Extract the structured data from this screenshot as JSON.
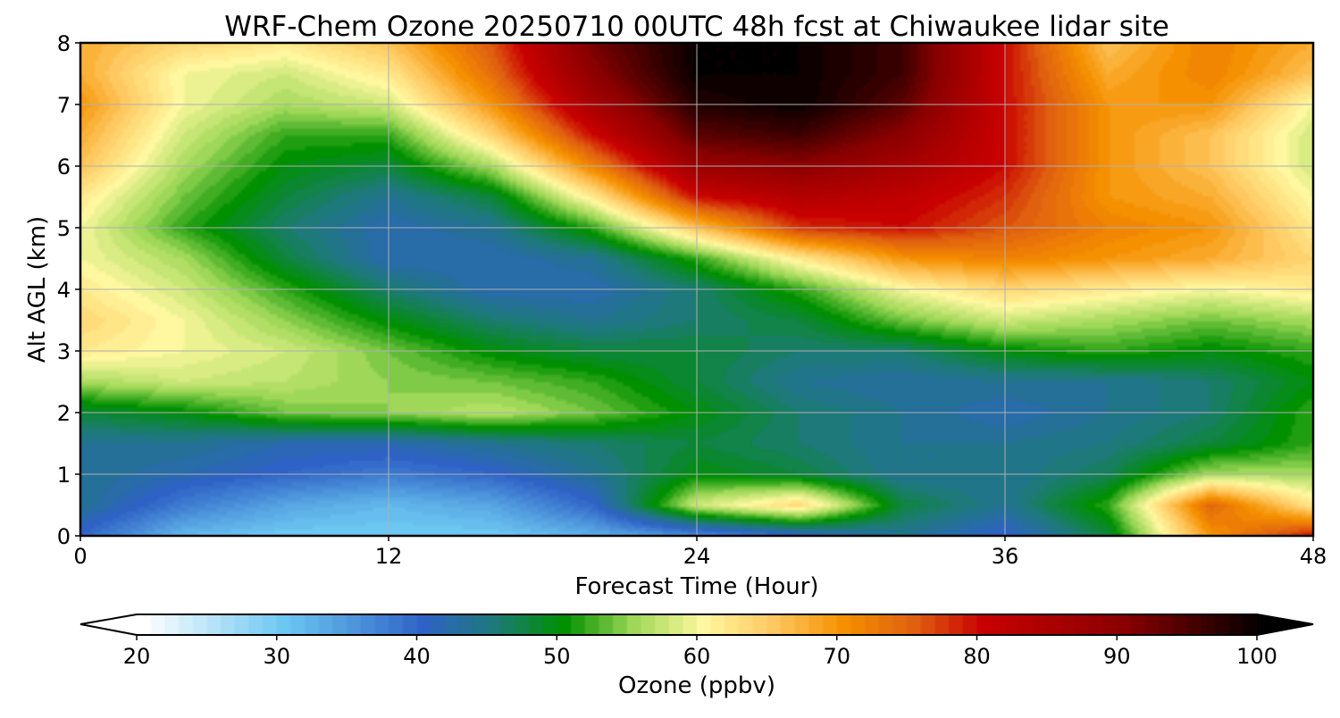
{
  "chart_data": {
    "type": "heatmap",
    "title": "WRF-Chem Ozone  20250710 00UTC 48h fcst at Chiwaukee lidar site",
    "xlabel": "Forecast Time (Hour)",
    "ylabel": "Alt AGL (km)",
    "xlim": [
      0,
      48
    ],
    "ylim": [
      0,
      8
    ],
    "x_ticks": [
      "0",
      "12",
      "24",
      "36",
      "48"
    ],
    "y_ticks": [
      "0",
      "1",
      "2",
      "3",
      "4",
      "5",
      "6",
      "7",
      "8"
    ],
    "grid": true,
    "x_hours": [
      0,
      4,
      8,
      12,
      16,
      20,
      24,
      28,
      32,
      36,
      40,
      44,
      48
    ],
    "y_km": [
      0,
      0.5,
      1,
      1.5,
      2,
      2.5,
      3,
      3.5,
      4,
      4.5,
      5,
      5.5,
      6,
      6.5,
      7,
      7.5,
      8
    ],
    "ozone_ppbv": [
      [
        40,
        32,
        30,
        30,
        30,
        33,
        36,
        40,
        44,
        40,
        48,
        70,
        80
      ],
      [
        44,
        38,
        34,
        32,
        34,
        40,
        58,
        64,
        48,
        44,
        52,
        75,
        62
      ],
      [
        44,
        42,
        40,
        38,
        40,
        44,
        50,
        48,
        44,
        44,
        47,
        56,
        56
      ],
      [
        44,
        44,
        42,
        42,
        44,
        46,
        48,
        46,
        44,
        44,
        45,
        48,
        52
      ],
      [
        48,
        50,
        54,
        55,
        57,
        54,
        50,
        46,
        44,
        42,
        44,
        46,
        52
      ],
      [
        56,
        58,
        57,
        55,
        54,
        52,
        48,
        44,
        43,
        44,
        44,
        46,
        50
      ],
      [
        62,
        60,
        58,
        54,
        50,
        48,
        48,
        46,
        46,
        50,
        52,
        50,
        52
      ],
      [
        64,
        60,
        55,
        50,
        46,
        44,
        46,
        48,
        54,
        58,
        56,
        54,
        56
      ],
      [
        62,
        58,
        52,
        46,
        42,
        42,
        46,
        52,
        60,
        64,
        62,
        60,
        62
      ],
      [
        60,
        56,
        48,
        42,
        42,
        44,
        52,
        62,
        70,
        72,
        70,
        68,
        64
      ],
      [
        60,
        52,
        46,
        42,
        44,
        52,
        66,
        78,
        80,
        76,
        72,
        70,
        62
      ],
      [
        62,
        54,
        48,
        44,
        48,
        62,
        80,
        84,
        82,
        78,
        70,
        68,
        60
      ],
      [
        66,
        56,
        50,
        48,
        56,
        72,
        88,
        90,
        86,
        80,
        70,
        66,
        58
      ],
      [
        68,
        58,
        52,
        52,
        64,
        80,
        94,
        96,
        90,
        80,
        70,
        66,
        58
      ],
      [
        70,
        60,
        56,
        58,
        70,
        86,
        98,
        100,
        94,
        80,
        70,
        70,
        60
      ],
      [
        68,
        60,
        58,
        62,
        74,
        90,
        100,
        100,
        96,
        80,
        68,
        72,
        66
      ],
      [
        68,
        64,
        62,
        66,
        76,
        92,
        100,
        100,
        96,
        80,
        66,
        72,
        68
      ]
    ],
    "colorbar": {
      "label": "Ozone  (ppbv)",
      "min": 20,
      "max": 100,
      "ticks": [
        "20",
        "30",
        "40",
        "50",
        "60",
        "70",
        "80",
        "90",
        "100"
      ],
      "extend": "both",
      "stops": [
        {
          "v": 20,
          "c": "#ffffff"
        },
        {
          "v": 30,
          "c": "#6cc7f2"
        },
        {
          "v": 40,
          "c": "#2f62c6"
        },
        {
          "v": 45,
          "c": "#1e7a7a"
        },
        {
          "v": 50,
          "c": "#009000"
        },
        {
          "v": 55,
          "c": "#9fd858"
        },
        {
          "v": 60,
          "c": "#fff8a0"
        },
        {
          "v": 65,
          "c": "#ffc860"
        },
        {
          "v": 70,
          "c": "#f59000"
        },
        {
          "v": 75,
          "c": "#e06010"
        },
        {
          "v": 80,
          "c": "#c80000"
        },
        {
          "v": 90,
          "c": "#8a0000"
        },
        {
          "v": 100,
          "c": "#000000"
        }
      ]
    }
  }
}
